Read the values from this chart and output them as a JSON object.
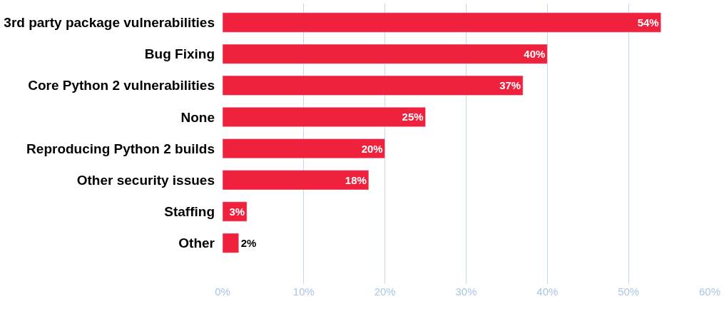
{
  "chart_data": {
    "type": "bar",
    "orientation": "horizontal",
    "categories": [
      "3rd party package vulnerabilities",
      "Bug Fixing",
      "Core Python 2 vulnerabilities",
      "None",
      "Reproducing Python 2 builds",
      "Other security issues",
      "Staffing",
      "Other"
    ],
    "values": [
      54,
      40,
      37,
      25,
      20,
      18,
      3,
      2
    ],
    "color": "#f0213c",
    "xlim": [
      0,
      60
    ],
    "xticks": [
      {
        "value": 0,
        "label": "0%"
      },
      {
        "value": 10,
        "label": "10%"
      },
      {
        "value": 20,
        "label": "20%"
      },
      {
        "value": 30,
        "label": "30%"
      },
      {
        "value": 40,
        "label": "40%"
      },
      {
        "value": 50,
        "label": "50%"
      },
      {
        "value": 60,
        "label": "60%"
      }
    ],
    "value_labels": [
      "54%",
      "40%",
      "37%",
      "25%",
      "20%",
      "18%",
      "3%",
      "2%"
    ],
    "grid": "x",
    "legend": false
  }
}
